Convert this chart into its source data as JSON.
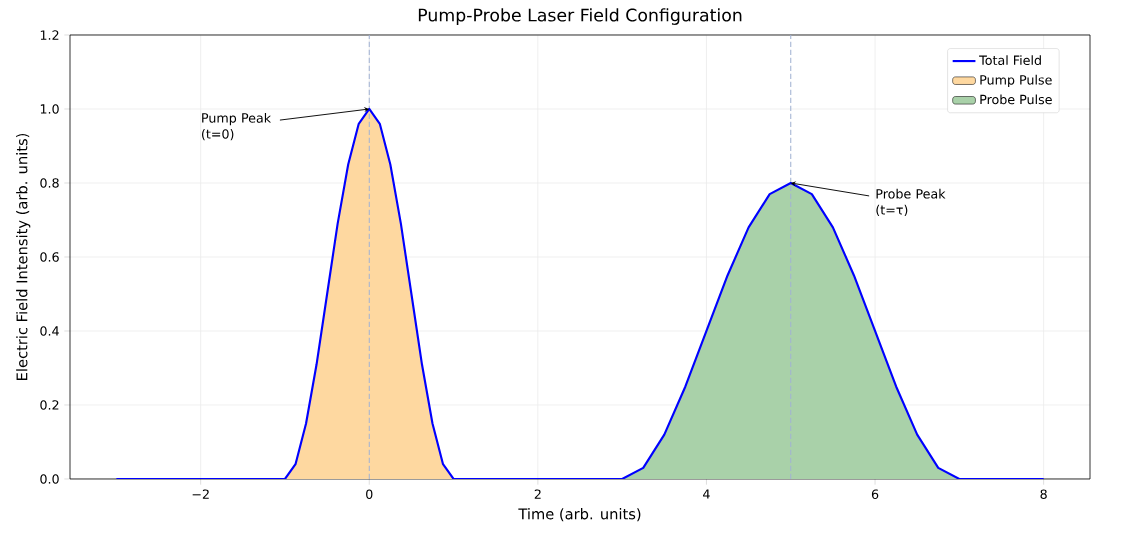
{
  "chart_data": {
    "type": "line",
    "title": "Pump-Probe Laser Field Configuration",
    "xlabel": "Time (arb. units)",
    "ylabel": "Electric Field Intensity (arb. units)",
    "series": [
      {
        "name": "Total Field",
        "color": "#0000ff",
        "x": [
          -3,
          -1,
          -0.875,
          -0.75,
          -0.625,
          -0.5,
          -0.375,
          -0.25,
          -0.125,
          0,
          0.125,
          0.25,
          0.375,
          0.5,
          0.625,
          0.75,
          0.875,
          1,
          3,
          3.25,
          3.5,
          3.75,
          4,
          4.25,
          4.5,
          4.75,
          5,
          5.25,
          5.5,
          5.75,
          6,
          6.25,
          6.5,
          6.75,
          7,
          8
        ],
        "values": [
          0,
          0,
          0.04,
          0.15,
          0.31,
          0.5,
          0.69,
          0.85,
          0.96,
          1,
          0.96,
          0.85,
          0.69,
          0.5,
          0.31,
          0.15,
          0.04,
          0,
          0,
          0.03,
          0.12,
          0.25,
          0.4,
          0.55,
          0.68,
          0.77,
          0.8,
          0.77,
          0.68,
          0.55,
          0.4,
          0.25,
          0.12,
          0.03,
          0,
          0
        ]
      },
      {
        "name": "Pump Pulse",
        "type": "area",
        "color": "#fed8a0",
        "x": [
          -1,
          -0.875,
          -0.75,
          -0.625,
          -0.5,
          -0.375,
          -0.25,
          -0.125,
          0,
          0.125,
          0.25,
          0.375,
          0.5,
          0.625,
          0.75,
          0.875,
          1
        ],
        "values": [
          0,
          0.04,
          0.15,
          0.31,
          0.5,
          0.69,
          0.85,
          0.96,
          1,
          0.96,
          0.85,
          0.69,
          0.5,
          0.31,
          0.15,
          0.04,
          0
        ]
      },
      {
        "name": "Probe Pulse",
        "type": "area",
        "color": "#a9d1a9",
        "x": [
          3,
          3.25,
          3.5,
          3.75,
          4,
          4.25,
          4.5,
          4.75,
          5,
          5.25,
          5.5,
          5.75,
          6,
          6.25,
          6.5,
          6.75,
          7
        ],
        "values": [
          0,
          0.03,
          0.12,
          0.25,
          0.4,
          0.55,
          0.68,
          0.77,
          0.8,
          0.77,
          0.68,
          0.55,
          0.4,
          0.25,
          0.12,
          0.03,
          0
        ]
      }
    ],
    "xlim": [
      -3.55,
      8.55
    ],
    "ylim": [
      0,
      1.2
    ],
    "xticks": [
      {
        "value": -2,
        "label": "−2"
      },
      0,
      2,
      4,
      6,
      8
    ],
    "yticks": [
      {
        "value": 0,
        "label": "0.0"
      },
      {
        "value": 0.2,
        "label": "0.2"
      },
      {
        "value": 0.4,
        "label": "0.4"
      },
      {
        "value": 0.6,
        "label": "0.6"
      },
      {
        "value": 0.8,
        "label": "0.8"
      },
      {
        "value": 1,
        "label": "1.0"
      },
      {
        "value": 1.2,
        "label": "1.2"
      }
    ],
    "ref_lines": [
      {
        "axis": "x",
        "value": 0,
        "color": "#a3b3d3",
        "line_style": "dashed"
      },
      {
        "axis": "x",
        "value": 5,
        "color": "#a3b3d3",
        "line_style": "dashed"
      }
    ],
    "annotations": [
      {
        "text": "Pump Peak (t=0)",
        "x": 0,
        "y": 1
      },
      {
        "text": "Probe Peak (t=τ)",
        "x": 5,
        "y": 0.8
      }
    ],
    "grid": true,
    "legend": "top right"
  }
}
